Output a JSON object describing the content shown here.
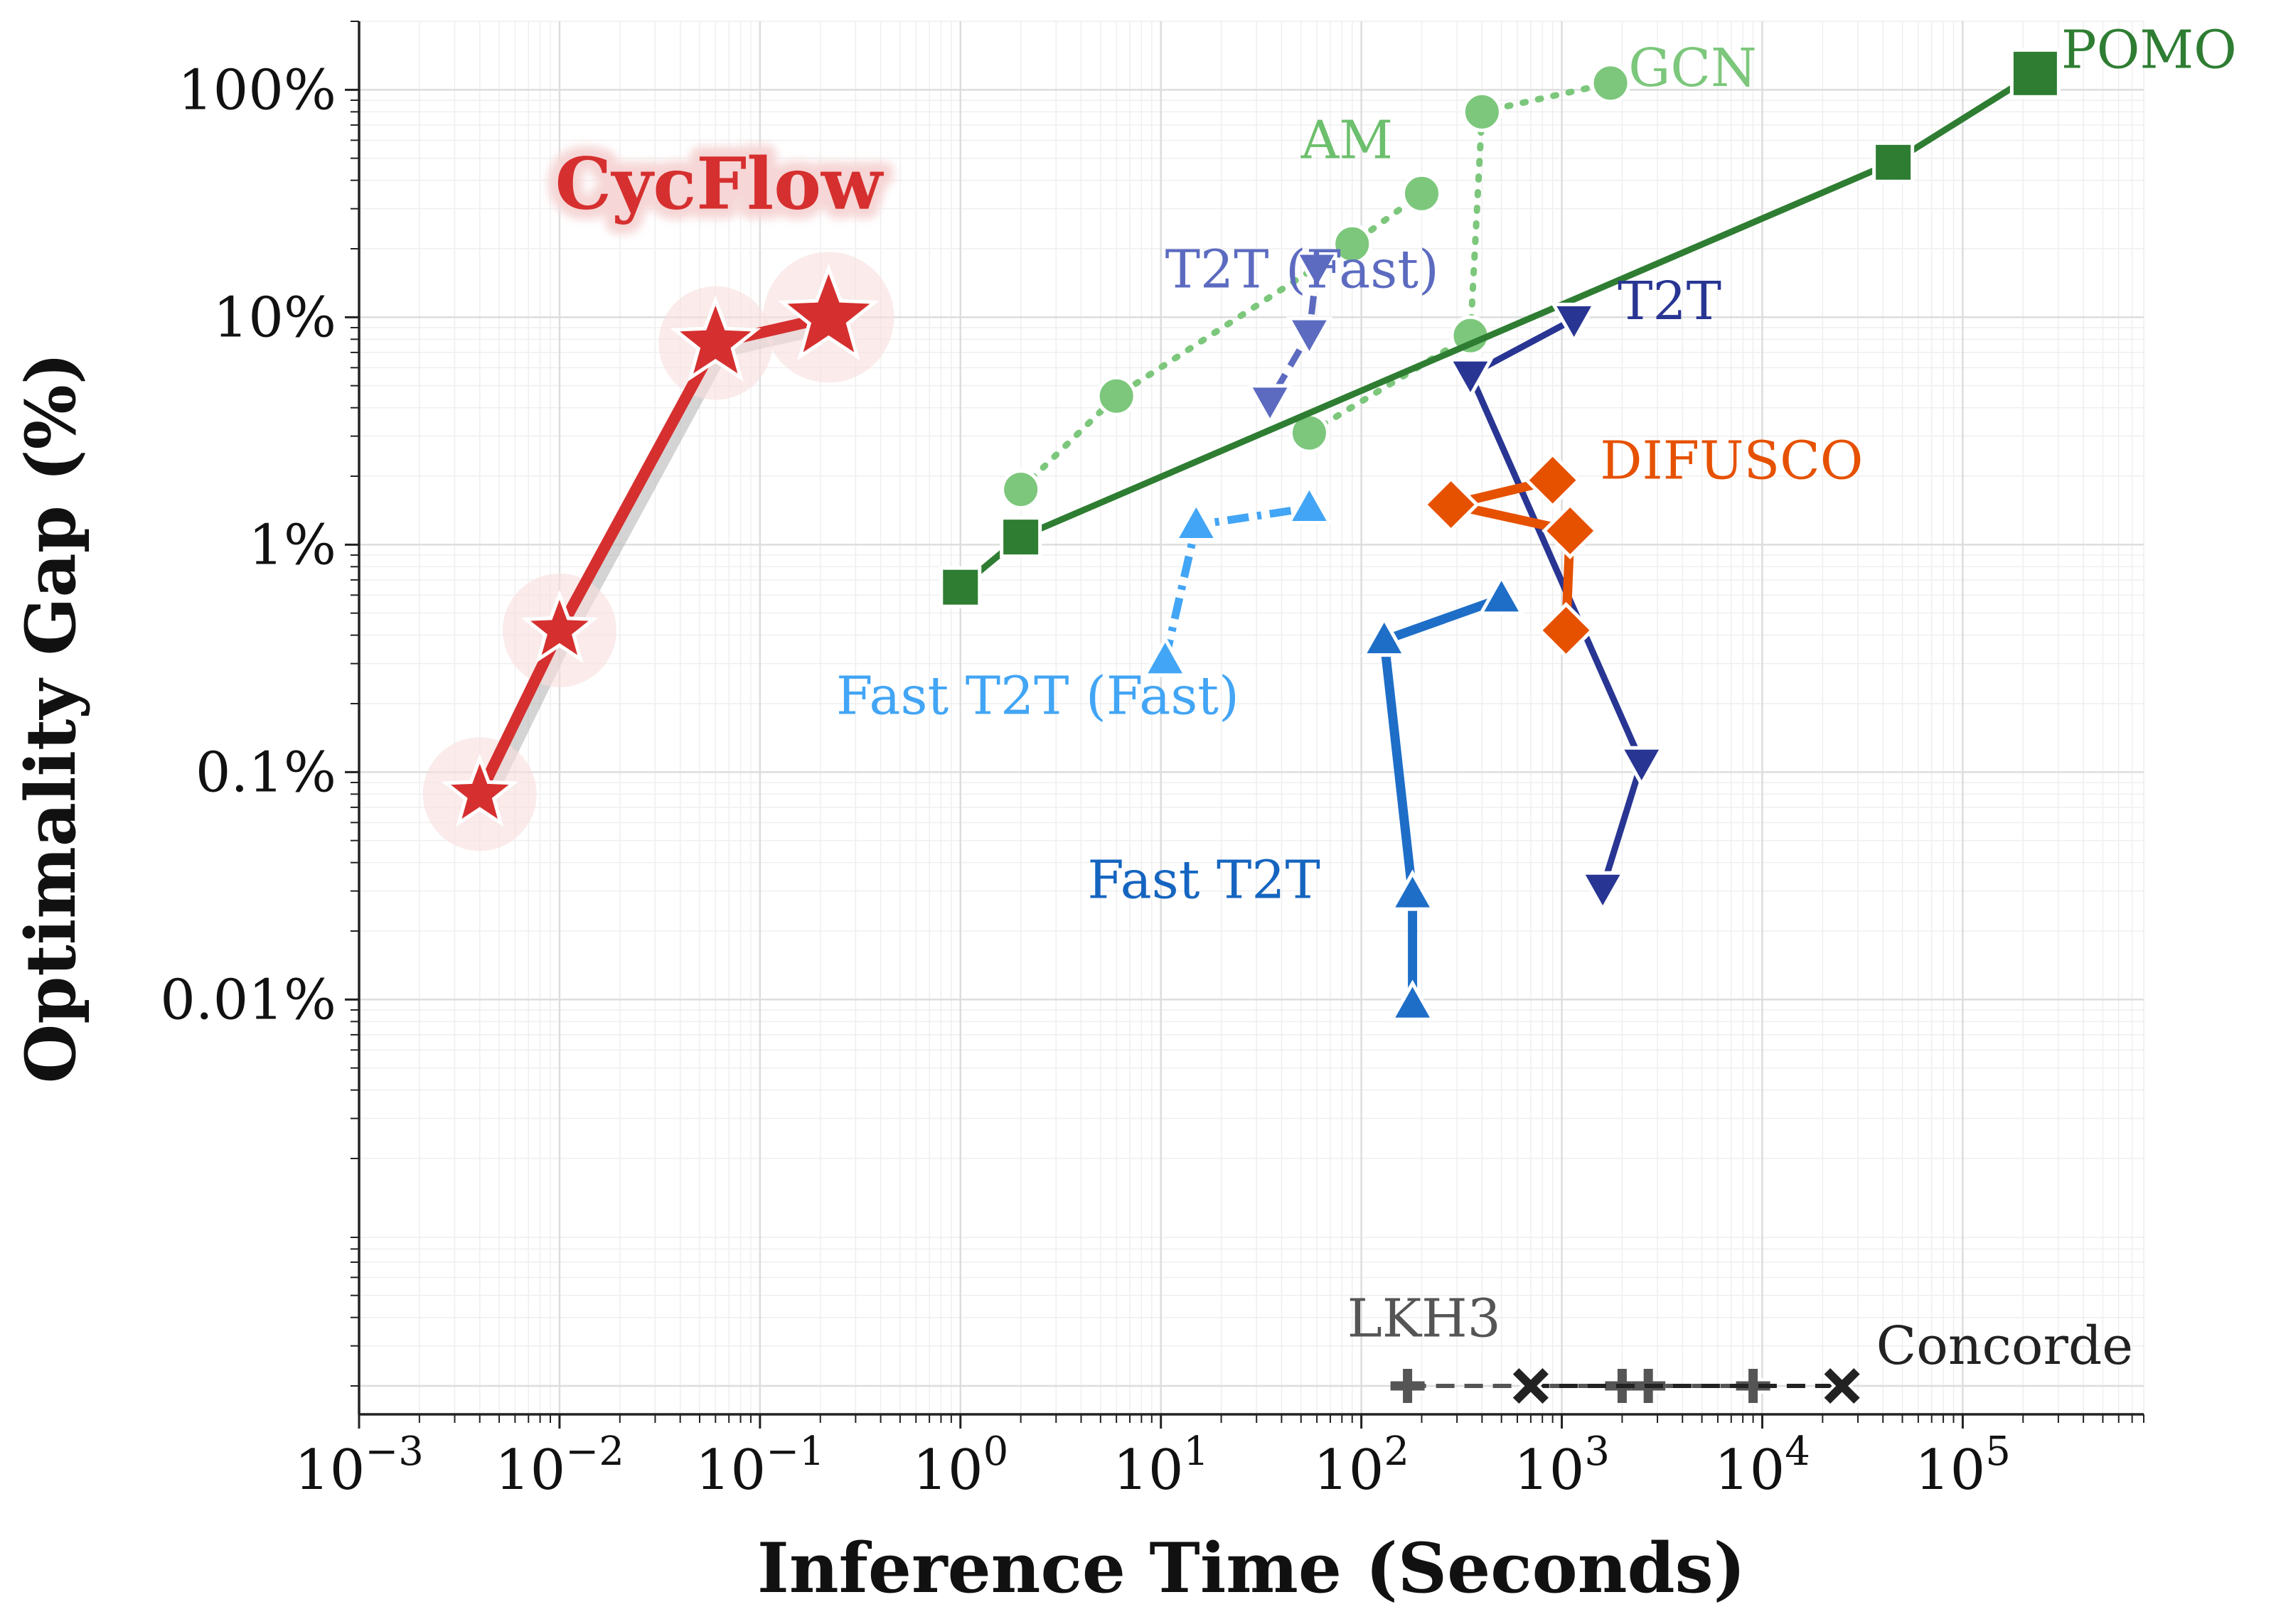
{
  "chart_data": {
    "type": "line",
    "xlabel": "Inference Time (Seconds)",
    "ylabel": "Optimality Gap (%)",
    "xscale": "log",
    "yscale": "log",
    "xlim": [
      0.001,
      800000
    ],
    "ylim": [
      0.00015,
      200
    ],
    "grid": true,
    "x_ticks": [
      {
        "value": 0.001,
        "base": "10",
        "exp": "−3"
      },
      {
        "value": 0.01,
        "base": "10",
        "exp": "−2"
      },
      {
        "value": 0.1,
        "base": "10",
        "exp": "−1"
      },
      {
        "value": 1,
        "base": "10",
        "exp": "0"
      },
      {
        "value": 10,
        "base": "10",
        "exp": "1"
      },
      {
        "value": 100,
        "base": "10",
        "exp": "2"
      },
      {
        "value": 1000,
        "base": "10",
        "exp": "3"
      },
      {
        "value": 10000,
        "base": "10",
        "exp": "4"
      },
      {
        "value": 100000,
        "base": "10",
        "exp": "5"
      }
    ],
    "y_ticks": [
      {
        "value": 100,
        "label": "100%"
      },
      {
        "value": 10,
        "label": "10%"
      },
      {
        "value": 1,
        "label": "1%"
      },
      {
        "value": 0.1,
        "label": "0.1%"
      },
      {
        "value": 0.01,
        "label": "0.01%"
      }
    ],
    "series": [
      {
        "name": "CycFlow",
        "label": "CycFlow",
        "color": "#d62f2f",
        "marker": "star",
        "dash": "solid",
        "highlight": true,
        "points": [
          [
            0.004,
            0.08
          ],
          [
            0.01,
            0.42
          ],
          [
            0.06,
            7.7
          ],
          [
            0.22,
            10.0
          ]
        ],
        "label_at": [
          0.0095,
          30
        ],
        "label_color": "#d62f2f"
      },
      {
        "name": "GCN",
        "label": "GCN",
        "color": "#7cc77c",
        "marker": "circle",
        "dash": "dotted",
        "points": [
          [
            350,
            8.3
          ],
          [
            400,
            80
          ],
          [
            1750,
            107
          ]
        ],
        "label_at": [
          2150,
          104
        ],
        "label_color": "#7cc77c"
      },
      {
        "name": "AM",
        "label": "AM",
        "color": "#7cc77c",
        "marker": "circle",
        "dash": "dotted",
        "points": [
          [
            2,
            1.75
          ],
          [
            6,
            4.5
          ],
          [
            90,
            21
          ],
          [
            200,
            35
          ]
        ],
        "label_at": [
          50,
          50
        ],
        "label_color": "#6cbf6c"
      },
      {
        "name": "GCN-lower",
        "label": "",
        "color": "#7cc77c",
        "marker": "circle",
        "dash": "dotted",
        "points": [
          [
            55,
            3.1
          ],
          [
            350,
            8.3
          ]
        ],
        "label_at": null,
        "label_color": "#7cc77c"
      },
      {
        "name": "POMO",
        "label": "POMO",
        "color": "#2e7d32",
        "marker": "square",
        "dash": "solid",
        "points": [
          [
            1,
            0.65
          ],
          [
            2,
            1.08
          ],
          [
            45000,
            48
          ],
          [
            230000,
            118
          ]
        ],
        "label_at": [
          310000,
          125
        ],
        "label_color": "#2e7d32"
      },
      {
        "name": "T2T",
        "label": "T2T",
        "color": "#283593",
        "marker": "triangle-down",
        "dash": "solid",
        "points": [
          [
            1150,
            9.8
          ],
          [
            350,
            5.6
          ],
          [
            2500,
            0.11
          ],
          [
            1600,
            0.031
          ]
        ],
        "label_at": [
          1900,
          9.8
        ],
        "label_color": "#283593"
      },
      {
        "name": "T2T (Fast)",
        "label": "T2T (Fast)",
        "color": "#5c6bc0",
        "marker": "triangle-down",
        "dash": "dashed",
        "points": [
          [
            60,
            16.5
          ],
          [
            55,
            8.5
          ],
          [
            35,
            4.3
          ]
        ],
        "label_at": [
          10.5,
          13.5
        ],
        "label_color": "#5c6bc0"
      },
      {
        "name": "DIFUSCO",
        "label": "DIFUSCO",
        "color": "#e65100",
        "marker": "diamond",
        "dash": "solid",
        "points": [
          [
            900,
            1.92
          ],
          [
            280,
            1.5
          ],
          [
            1100,
            1.15
          ],
          [
            1050,
            0.42
          ]
        ],
        "label_at": [
          1550,
          1.95
        ],
        "label_color": "#e65100"
      },
      {
        "name": "Fast T2T (Fast)",
        "label": "Fast T2T (Fast)",
        "color": "#42a5f5",
        "marker": "triangle-up",
        "dash": "dashdot",
        "points": [
          [
            10.5,
            0.31
          ],
          [
            15,
            1.22
          ],
          [
            55,
            1.45
          ]
        ],
        "label_at": [
          0.24,
          0.18
        ],
        "label_color": "#42a5f5"
      },
      {
        "name": "Fast T2T",
        "label": "Fast T2T",
        "color": "#1e6ec8",
        "marker": "triangle-up",
        "dash": "solid",
        "points": [
          [
            500,
            0.58
          ],
          [
            130,
            0.38
          ],
          [
            180,
            0.029
          ],
          [
            180,
            0.0095
          ]
        ],
        "label_at": [
          4.3,
          0.028
        ],
        "label_color": "#1565c0"
      },
      {
        "name": "LKH3",
        "label": "LKH3",
        "color": "#555555",
        "marker": "plus",
        "dash": "dashed",
        "points": [
          [
            170,
            0.0002
          ],
          [
            2000,
            0.0002
          ],
          [
            2700,
            0.0002
          ],
          [
            9000,
            0.0002
          ]
        ],
        "label_at": [
          85,
          0.00033
        ],
        "label_color": "#555555"
      },
      {
        "name": "Concorde",
        "label": "Concorde",
        "color": "#222222",
        "marker": "x",
        "dash": "dashed",
        "points": [
          [
            700,
            0.0002
          ],
          [
            25000,
            0.0002
          ]
        ],
        "label_at": [
          37000,
          0.00025
        ],
        "label_color": "#222222"
      }
    ]
  }
}
